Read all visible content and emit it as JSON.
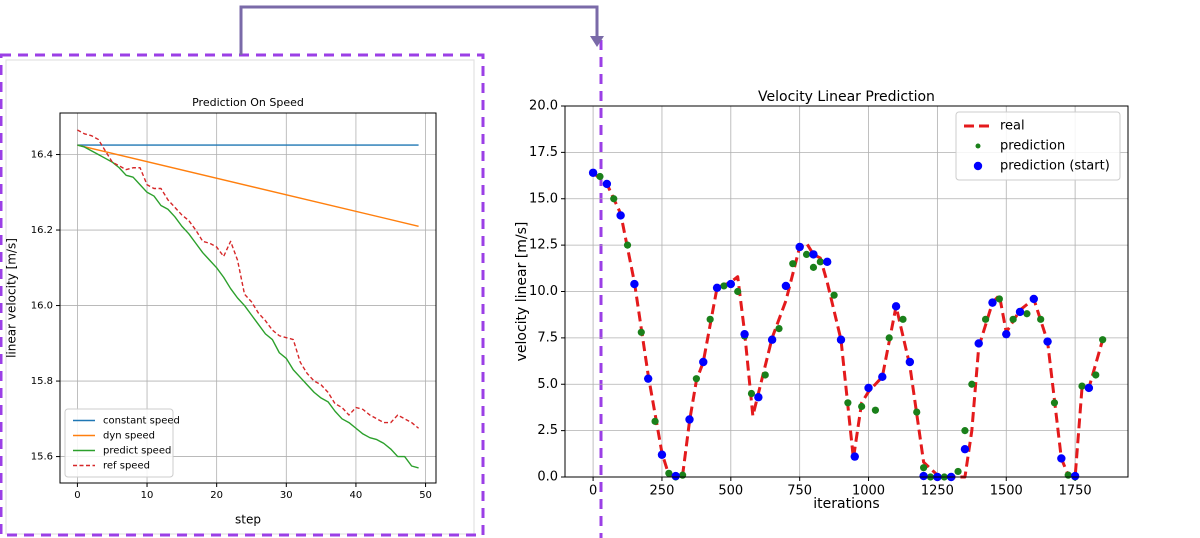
{
  "chart_data": [
    {
      "type": "line",
      "title": "Prediction On Speed",
      "x_label": "step",
      "y_label": "linear velocity [m/s]",
      "x": [
        0,
        1,
        2,
        3,
        4,
        5,
        6,
        7,
        8,
        9,
        10,
        11,
        12,
        13,
        14,
        15,
        16,
        17,
        18,
        19,
        20,
        21,
        22,
        23,
        24,
        25,
        26,
        27,
        28,
        29,
        30,
        31,
        32,
        33,
        34,
        35,
        36,
        37,
        38,
        39,
        40,
        41,
        42,
        43,
        44,
        45,
        46,
        47,
        48,
        49
      ],
      "series": [
        {
          "name": "constant speed",
          "color": "#1f77b4",
          "style": "solid",
          "x": [
            0,
            49
          ],
          "values": [
            16.425,
            16.425
          ]
        },
        {
          "name": "dyn speed",
          "color": "#ff7f0e",
          "style": "solid",
          "x": [
            0,
            49
          ],
          "values": [
            16.425,
            16.21
          ]
        },
        {
          "name": "predict speed",
          "color": "#2ca02c",
          "style": "solid",
          "values": [
            16.425,
            16.42,
            16.41,
            16.4,
            16.39,
            16.38,
            16.365,
            16.345,
            16.34,
            16.32,
            16.3,
            16.29,
            16.265,
            16.255,
            16.235,
            16.21,
            16.19,
            16.165,
            16.14,
            16.12,
            16.1,
            16.075,
            16.045,
            16.02,
            16.0,
            15.975,
            15.95,
            15.925,
            15.91,
            15.875,
            15.86,
            15.83,
            15.81,
            15.79,
            15.77,
            15.755,
            15.745,
            15.72,
            15.7,
            15.69,
            15.675,
            15.66,
            15.65,
            15.645,
            15.635,
            15.62,
            15.6,
            15.6,
            15.575,
            15.57
          ]
        },
        {
          "name": "ref speed",
          "color": "#d62728",
          "style": "dashed",
          "values": [
            16.465,
            16.455,
            16.45,
            16.44,
            16.41,
            16.38,
            16.37,
            16.36,
            16.365,
            16.365,
            16.32,
            16.31,
            16.31,
            16.28,
            16.26,
            16.24,
            16.225,
            16.2,
            16.17,
            16.165,
            16.155,
            16.13,
            16.17,
            16.12,
            16.03,
            16.01,
            15.98,
            15.96,
            15.935,
            15.92,
            15.915,
            15.91,
            15.85,
            15.82,
            15.8,
            15.79,
            15.77,
            15.74,
            15.73,
            15.71,
            15.73,
            15.725,
            15.71,
            15.7,
            15.69,
            15.69,
            15.71,
            15.7,
            15.69,
            15.675
          ]
        }
      ],
      "xlim": [
        -2.5,
        51.5
      ],
      "ylim": [
        15.53,
        16.51
      ],
      "xticks": [
        0,
        10,
        20,
        30,
        40,
        50
      ],
      "yticks": [
        15.6,
        15.8,
        {
          "value": 16,
          "label": "16.0"
        },
        16.2,
        16.4
      ],
      "grid": true,
      "legend": "lower left"
    },
    {
      "type": "line",
      "title": "Velocity Linear Prediction",
      "x_label": "iterations",
      "y_label": "velocity linear [m/s]",
      "x": [
        0,
        25,
        50,
        75,
        100,
        125,
        150,
        175,
        200,
        225,
        250,
        275,
        300,
        325,
        350,
        375,
        400,
        425,
        450,
        475,
        500,
        525,
        550,
        575,
        600,
        625,
        650,
        675,
        700,
        725,
        750,
        775,
        800,
        825,
        850,
        875,
        900,
        925,
        950,
        975,
        1000,
        1025,
        1050,
        1075,
        1100,
        1125,
        1150,
        1175,
        1200,
        1225,
        1250,
        1275,
        1300,
        1325,
        1350,
        1375,
        1400,
        1425,
        1450,
        1475,
        1500,
        1525,
        1550,
        1575,
        1600,
        1625,
        1650,
        1675,
        1700,
        1725,
        1750,
        1775,
        1800,
        1825,
        1850
      ],
      "series": [
        {
          "name": "real",
          "color": "#e41a1c",
          "style": "dashed",
          "x": [
            0,
            50,
            100,
            150,
            200,
            250,
            275,
            300,
            325,
            350,
            375,
            400,
            450,
            500,
            525,
            550,
            580,
            600,
            650,
            700,
            750,
            775,
            800,
            825,
            850,
            900,
            945,
            975,
            1000,
            1050,
            1100,
            1150,
            1200,
            1250,
            1300,
            1350,
            1375,
            1400,
            1450,
            1475,
            1500,
            1550,
            1600,
            1650,
            1700,
            1725,
            1750,
            1775,
            1800,
            1850
          ],
          "values": [
            16.4,
            15.8,
            14.2,
            10.5,
            5.5,
            1.3,
            0.1,
            0.0,
            0.1,
            3.0,
            5.2,
            6.2,
            10.2,
            10.5,
            10.8,
            7.8,
            3.3,
            4.5,
            7.5,
            9.5,
            12.4,
            12.6,
            12.0,
            11.8,
            10.5,
            7.4,
            1.0,
            4.0,
            4.6,
            5.4,
            9.2,
            6.0,
            0.8,
            0.1,
            0.0,
            0.0,
            2.5,
            7.0,
            9.4,
            9.8,
            7.8,
            9.0,
            9.6,
            7.3,
            1.0,
            0.1,
            0.0,
            4.8,
            4.8,
            7.4
          ]
        },
        {
          "name": "prediction",
          "color": "#1a801a",
          "style": "dots",
          "values": [
            16.4,
            16.2,
            15.8,
            15.0,
            14.1,
            12.5,
            10.4,
            7.8,
            5.3,
            3.0,
            1.2,
            0.2,
            0.0,
            0.1,
            3.1,
            5.3,
            6.2,
            8.5,
            10.2,
            10.3,
            10.4,
            10.0,
            7.6,
            4.5,
            4.3,
            5.5,
            7.4,
            8.0,
            10.3,
            11.5,
            12.4,
            12.0,
            11.3,
            11.6,
            11.6,
            9.8,
            7.4,
            4.0,
            1.1,
            3.8,
            4.8,
            3.6,
            5.4,
            7.5,
            9.2,
            8.5,
            6.2,
            3.5,
            0.5,
            0.0,
            0.0,
            0.0,
            0.0,
            0.3,
            2.5,
            5.0,
            7.2,
            8.5,
            9.4,
            9.6,
            7.7,
            8.5,
            8.9,
            8.8,
            9.6,
            8.5,
            7.3,
            4.0,
            1.0,
            0.1,
            0.0,
            4.9,
            4.8,
            5.5,
            7.4
          ]
        },
        {
          "name": "prediction (start)",
          "color": "#0000ff",
          "style": "points",
          "x": [
            0,
            50,
            100,
            150,
            200,
            250,
            300,
            350,
            400,
            450,
            500,
            550,
            600,
            650,
            700,
            750,
            800,
            850,
            900,
            950,
            1000,
            1050,
            1100,
            1150,
            1200,
            1250,
            1300,
            1350,
            1400,
            1450,
            1500,
            1550,
            1600,
            1650,
            1700,
            1750,
            1800
          ],
          "values": [
            16.4,
            15.8,
            14.1,
            10.4,
            5.3,
            1.2,
            0.05,
            3.1,
            6.2,
            10.2,
            10.4,
            7.7,
            4.3,
            7.4,
            10.3,
            12.4,
            12.0,
            11.6,
            7.4,
            1.1,
            4.8,
            5.4,
            9.2,
            6.2,
            0.05,
            0.0,
            0.0,
            1.5,
            7.2,
            9.4,
            7.7,
            8.9,
            9.6,
            7.3,
            1.0,
            0.05,
            4.8
          ]
        }
      ],
      "xlim": [
        -102,
        1942
      ],
      "ylim": [
        0,
        20
      ],
      "xticks": [
        0,
        250,
        500,
        750,
        1000,
        1250,
        1500,
        1750
      ],
      "yticks": [
        {
          "value": 0,
          "label": "0.0"
        },
        2.5,
        {
          "value": 5,
          "label": "5.0"
        },
        7.5,
        {
          "value": 10,
          "label": "10.0"
        },
        12.5,
        {
          "value": 15,
          "label": "15.0"
        },
        17.5,
        {
          "value": 20,
          "label": "20.0"
        }
      ],
      "grid": true,
      "legend": "upper right"
    }
  ]
}
